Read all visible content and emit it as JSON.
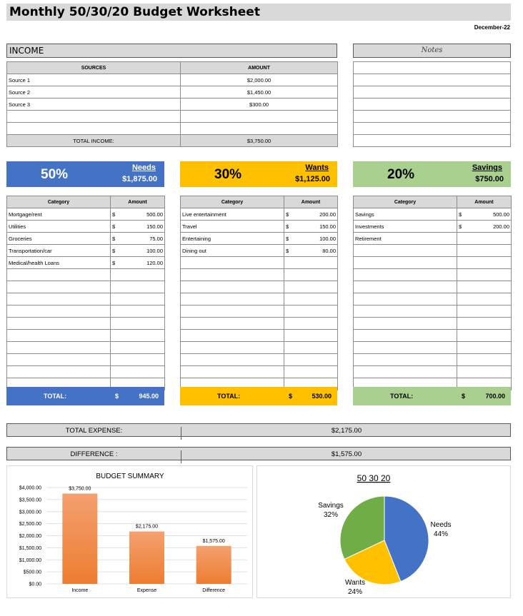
{
  "title": "Monthly 50/30/20 Budget Worksheet",
  "date": "December-22",
  "income": {
    "header": "INCOME",
    "col_sources": "SOURCES",
    "col_amount": "AMOUNT",
    "rows": [
      {
        "source": "Source 1",
        "amount": "$2,000.00"
      },
      {
        "source": "Source 2",
        "amount": "$1,450.00"
      },
      {
        "source": "Source 3",
        "amount": "$300.00"
      },
      {
        "source": "",
        "amount": ""
      },
      {
        "source": "",
        "amount": ""
      }
    ],
    "total_label": "TOTAL INCOME:",
    "total_value": "$3,750.00"
  },
  "notes": {
    "header": "Notes",
    "lines": 7
  },
  "categories": {
    "col_category": "Category",
    "col_amount": "Amount",
    "total_label": "TOTAL:",
    "currency": "$",
    "needs": {
      "pct": "50%",
      "name": "Needs",
      "amount": "$1,875.00",
      "color": "#4472c4",
      "rows": [
        {
          "category": "Mortgage/rent",
          "cur": "$",
          "amount": "500.00"
        },
        {
          "category": "Utilities",
          "cur": "$",
          "amount": "150.00"
        },
        {
          "category": "Groceries",
          "cur": "$",
          "amount": "75.00"
        },
        {
          "category": "Transportation/car",
          "cur": "$",
          "amount": "100.00"
        },
        {
          "category": "Medical/health Loans",
          "cur": "$",
          "amount": "120.00"
        }
      ],
      "total": "945.00"
    },
    "wants": {
      "pct": "30%",
      "name": "Wants",
      "amount": "$1,125.00",
      "color": "#ffc000",
      "rows": [
        {
          "category": "Live entertainment",
          "cur": "$",
          "amount": "200.00"
        },
        {
          "category": "Travel",
          "cur": "$",
          "amount": "150.00"
        },
        {
          "category": "Entertaining",
          "cur": "$",
          "amount": "100.00"
        },
        {
          "category": "Dining out",
          "cur": "$",
          "amount": "80.00"
        }
      ],
      "total": "530.00"
    },
    "savings": {
      "pct": "20%",
      "name": "Savings",
      "amount": "$750.00",
      "color": "#a9d08e",
      "rows": [
        {
          "category": "Savings",
          "cur": "$",
          "amount": "500.00"
        },
        {
          "category": "Investments",
          "cur": "$",
          "amount": "200.00"
        },
        {
          "category": "Retirement",
          "cur": "",
          "amount": ""
        }
      ],
      "total": "700.00"
    }
  },
  "summary": {
    "expense_label": "TOTAL EXPENSE:",
    "expense_value": "$2,175.00",
    "difference_label": "DIFFERENCE :",
    "difference_value": "$1,575.00"
  },
  "chart_data": [
    {
      "type": "bar",
      "title": "BUDGET SUMMARY",
      "categories": [
        "Income",
        "Expense",
        "Difference"
      ],
      "values": [
        3750,
        2175,
        1575
      ],
      "value_labels": [
        "$3,750.00",
        "$2,175.00",
        "$1,575.00"
      ],
      "ylim": [
        0,
        4000
      ],
      "yticks": [
        0,
        500,
        1000,
        1500,
        2000,
        2500,
        3000,
        3500,
        4000
      ],
      "ytick_labels": [
        "$0.00",
        "$500.00",
        "$1,000.00",
        "$1,500.00",
        "$2,000.00",
        "$2,500.00",
        "$3,000.00",
        "$3,500.00",
        "$4,000.00"
      ],
      "bar_color": "#ed7d31",
      "grid": true
    },
    {
      "type": "pie",
      "title": "50 30 20",
      "labels": [
        "Needs",
        "Wants",
        "Savings"
      ],
      "values": [
        44,
        24,
        32
      ],
      "value_labels": [
        "44%",
        "24%",
        "32%"
      ],
      "colors": [
        "#4472c4",
        "#ffc000",
        "#70ad47"
      ]
    }
  ]
}
